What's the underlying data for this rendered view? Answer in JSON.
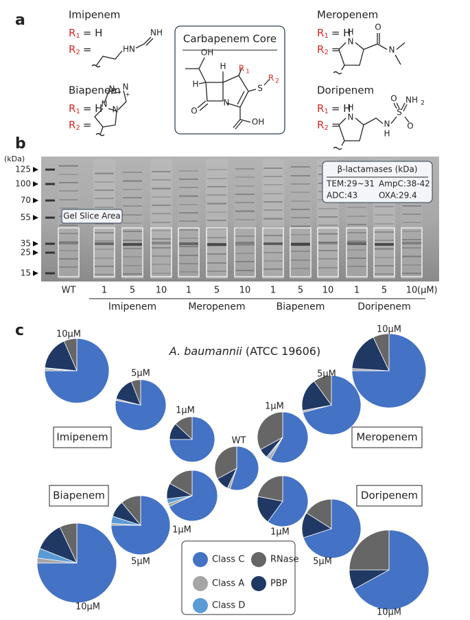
{
  "panel_labels": [
    "a",
    "b",
    "c"
  ],
  "panel_a": {
    "r_letter": "R",
    "sub1": "1",
    "sub2": "2",
    "drugs": [
      {
        "name": "Imipenem",
        "r1_value": "= H",
        "r2_value": "=",
        "atoms": [
          "HN",
          "NH"
        ]
      },
      {
        "name": "Biapenem",
        "r1_value": "= H",
        "r2_value": "=",
        "atoms": [
          "N",
          "N",
          "N",
          "N",
          "+"
        ]
      },
      {
        "name": "Meropenem",
        "r1_value": "= H",
        "r2_value": "=",
        "atoms": [
          "H",
          "N",
          "O",
          "N"
        ]
      },
      {
        "name": "Doripenem",
        "r1_value": "= H",
        "r2_value": "=",
        "atoms": [
          "H",
          "N",
          "N",
          "H",
          "S",
          "O",
          "O",
          "NH",
          "2"
        ]
      }
    ],
    "core": {
      "title": "Carbapenem Core",
      "atoms": [
        "OH",
        "H",
        "H",
        "R",
        "1",
        "S",
        "R",
        "2",
        "O",
        "N",
        "OH"
      ]
    }
  },
  "panel_b": {
    "unit_label": "(kDa)",
    "markers": [
      "125",
      "100",
      "70",
      "55",
      "35",
      "25",
      "15"
    ],
    "gel_label": "Gel Slice Area",
    "lanes": [
      "WT",
      "1",
      "5",
      "10",
      "1",
      "5",
      "10",
      "1",
      "5",
      "10",
      "1",
      "5",
      "10"
    ],
    "lane_unit": "(μM)",
    "groups": [
      "Imipenem",
      "Meropenem",
      "Biapenem",
      "Doripenem"
    ],
    "beta_box": {
      "title": "β-lactamases (kDa)",
      "lines": [
        "TEM:29~31",
        "AmpC:38-42",
        "ADC:43",
        "OXA:29.4"
      ]
    }
  },
  "panel_c": {
    "type": "pie",
    "title_italic": "A. baumannii",
    "title_rest": "(ATCC 19606)",
    "categories": [
      "Class C",
      "Class A",
      "Class D",
      "PBP",
      "RNase"
    ],
    "colors": [
      "#4472c4",
      "#a5a5a5",
      "#5b9bd5",
      "#203864",
      "#666666"
    ],
    "groups": [
      "Imipenem",
      "Meropenem",
      "Biapenem",
      "Doripenem"
    ],
    "pies": [
      {
        "label": "10μM",
        "values": [
          75,
          1,
          0.5,
          17,
          6.5
        ]
      },
      {
        "label": "5μM",
        "values": [
          78,
          1,
          0,
          15,
          6
        ]
      },
      {
        "label": "1μM",
        "values": [
          75,
          0,
          0,
          12,
          13
        ]
      },
      {
        "label": "WT",
        "values": [
          55,
          2,
          0,
          10,
          33
        ]
      },
      {
        "label": "1μM",
        "values": [
          58,
          2,
          1,
          6,
          33
        ]
      },
      {
        "label": "5μM",
        "values": [
          71,
          1,
          0,
          18,
          10
        ]
      },
      {
        "label": "10μM",
        "values": [
          75,
          1,
          0,
          17,
          7
        ]
      },
      {
        "label": "1μM",
        "values": [
          68,
          2,
          3,
          10,
          17
        ]
      },
      {
        "label": "5μM",
        "values": [
          75,
          1,
          4,
          9,
          11
        ]
      },
      {
        "label": "10μM",
        "values": [
          75,
          2,
          4,
          12,
          7
        ]
      },
      {
        "label": "1μM",
        "values": [
          60,
          0,
          0,
          18,
          22
        ]
      },
      {
        "label": "5μM",
        "values": [
          70,
          0,
          0,
          14,
          16
        ]
      },
      {
        "label": "10μM",
        "values": [
          67,
          0,
          0,
          8,
          25
        ]
      }
    ]
  }
}
